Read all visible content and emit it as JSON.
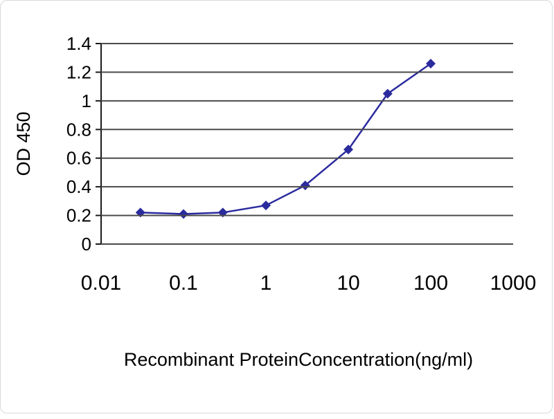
{
  "chart_data": {
    "type": "line",
    "title": "",
    "xlabel": "Recombinant ProteinConcentration(ng/ml)",
    "ylabel": "OD 450",
    "x_scale": "log",
    "xlim": [
      0.01,
      1000
    ],
    "ylim": [
      0,
      1.4
    ],
    "x_ticks": [
      0.01,
      0.1,
      1,
      10,
      100,
      1000
    ],
    "x_tick_labels": [
      "0.01",
      "0.1",
      "1",
      "10",
      "100",
      "1000"
    ],
    "y_ticks": [
      0,
      0.2,
      0.4,
      0.6,
      0.8,
      1,
      1.2,
      1.4
    ],
    "y_tick_labels": [
      "0",
      "0.2",
      "0.4",
      "0.6",
      "0.8",
      "1",
      "1.2",
      "1.4"
    ],
    "grid": "horizontal",
    "legend": "none",
    "series": [
      {
        "name": "OD 450",
        "marker": "diamond",
        "color": "#2b2b9e",
        "x": [
          0.03,
          0.1,
          0.3,
          1,
          3,
          10,
          30,
          100
        ],
        "y": [
          0.22,
          0.21,
          0.22,
          0.27,
          0.41,
          0.66,
          1.05,
          1.26
        ]
      }
    ],
    "colors": {
      "grid": "#4a4a4a",
      "axis": "#1a1a1a",
      "text": "#000000",
      "background": "#ffffff"
    }
  }
}
